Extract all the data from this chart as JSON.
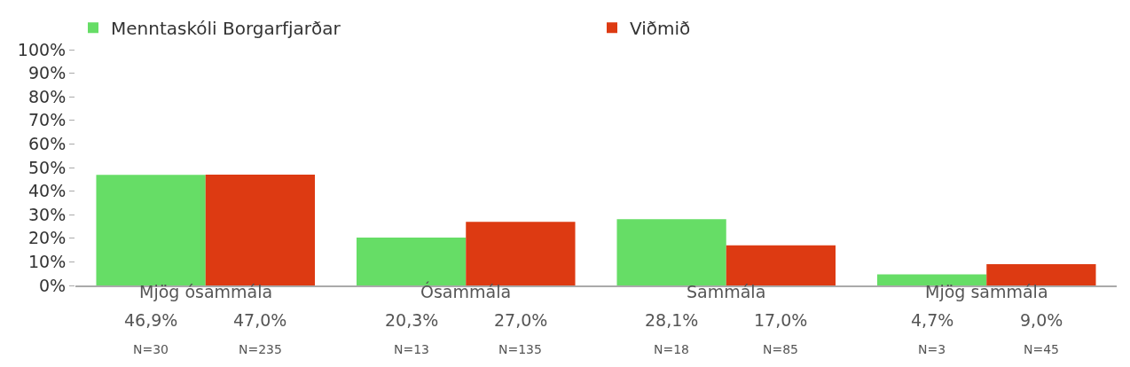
{
  "chart_data": {
    "type": "bar",
    "categories": [
      "Mjög ósammála",
      "Ósammála",
      "Sammála",
      "Mjög sammála"
    ],
    "series": [
      {
        "name": "Menntaskóli Borgarfjarðar",
        "color": "#66dd66",
        "values": [
          46.9,
          20.3,
          28.1,
          4.7
        ],
        "value_labels": [
          "46,9%",
          "20,3%",
          "28,1%",
          "4,7%"
        ]
      },
      {
        "name": "Viðmið",
        "color": "#dd3a12",
        "values": [
          47.0,
          27.0,
          17.0,
          9.0
        ],
        "value_labels": [
          "47,0%",
          "27,0%",
          "17,0%",
          "9,0%"
        ]
      }
    ],
    "annotations": [
      "N=30",
      "N=235",
      "N=13",
      "N=135",
      "N=18",
      "N=85",
      "N=3",
      "N=45"
    ],
    "ylim": [
      0,
      100
    ],
    "yticks": [
      {
        "value": 0,
        "label": "0%"
      },
      {
        "value": 10,
        "label": "10%"
      },
      {
        "value": 20,
        "label": "20%"
      },
      {
        "value": 30,
        "label": "30%"
      },
      {
        "value": 40,
        "label": "40%"
      },
      {
        "value": 50,
        "label": "50%"
      },
      {
        "value": 60,
        "label": "60%"
      },
      {
        "value": 70,
        "label": "70%"
      },
      {
        "value": 80,
        "label": "80%"
      },
      {
        "value": 90,
        "label": "90%"
      },
      {
        "value": 100,
        "label": "100%"
      }
    ],
    "legend": "top left"
  }
}
